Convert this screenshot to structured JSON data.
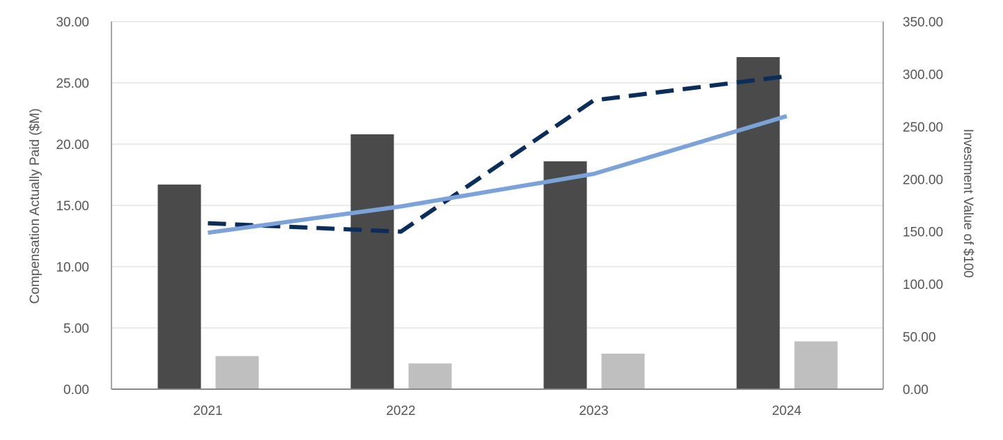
{
  "chart_data": {
    "type": "bar",
    "categories": [
      "2021",
      "2022",
      "2023",
      "2024"
    ],
    "ylabel": "Compensation Actually Paid ($M)",
    "y2label": "Investment Value of $100",
    "ylim": [
      0,
      30
    ],
    "y2lim": [
      0,
      350
    ],
    "yticks": [
      "0.00",
      "5.00",
      "10.00",
      "15.00",
      "20.00",
      "25.00",
      "30.00"
    ],
    "y2ticks": [
      "0.00",
      "50.00",
      "100.00",
      "150.00",
      "200.00",
      "250.00",
      "300.00",
      "350.00"
    ],
    "grid": true,
    "bar_series": [
      {
        "values": [
          16.7,
          20.8,
          18.6,
          27.1
        ],
        "color": "#4a4a4a",
        "axis": "left"
      },
      {
        "values": [
          2.7,
          2.1,
          2.9,
          3.9
        ],
        "color": "#bfbfbf",
        "axis": "left"
      }
    ],
    "line_series": [
      {
        "values": [
          158,
          150,
          275,
          298
        ],
        "color": "#0b2d5a",
        "style": "dashed",
        "axis": "right"
      },
      {
        "values": [
          149,
          174,
          205,
          260
        ],
        "color": "#7ba3d9",
        "style": "solid",
        "axis": "right"
      }
    ]
  }
}
